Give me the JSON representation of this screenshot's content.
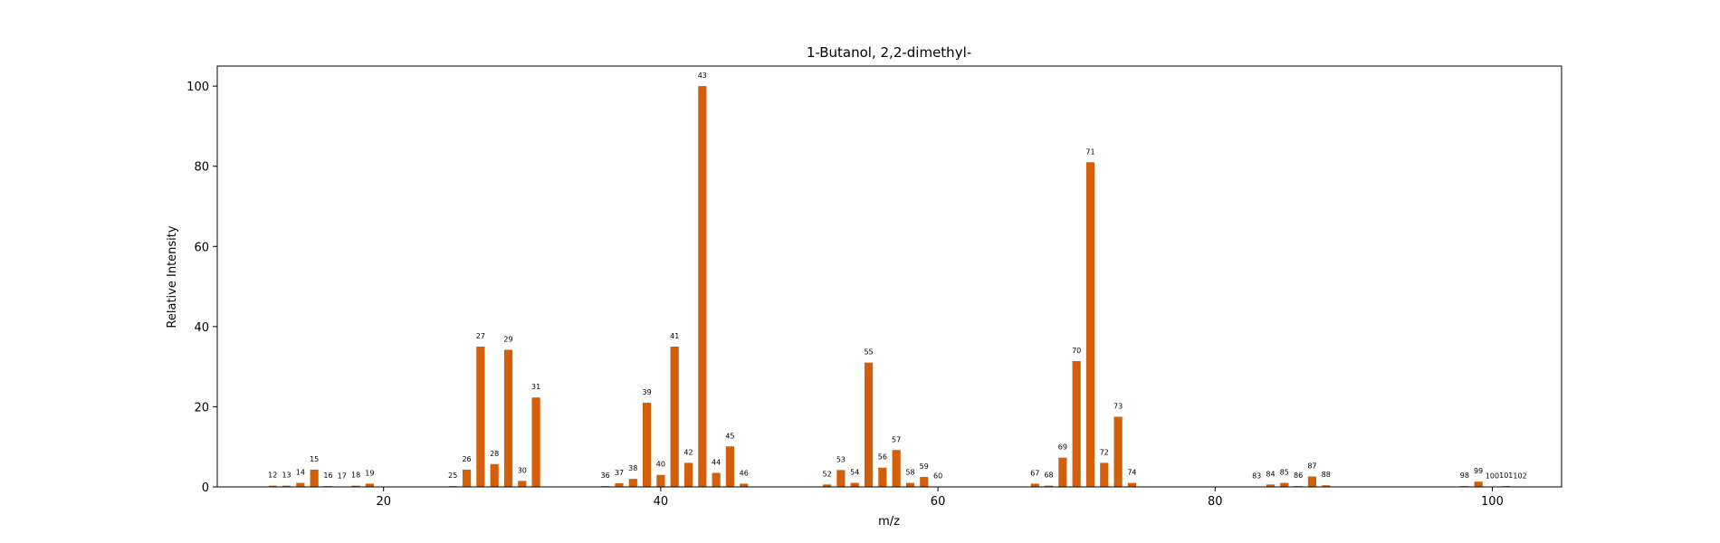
{
  "chart_data": {
    "type": "bar",
    "title": "1-Butanol, 2,2-dimethyl-",
    "xlabel": "m/z",
    "ylabel": "Relative Intensity",
    "xlim": [
      8,
      105
    ],
    "ylim": [
      0,
      105
    ],
    "xticks": [
      20,
      40,
      60,
      80,
      100
    ],
    "yticks": [
      0,
      20,
      40,
      60,
      80,
      100
    ],
    "grid": false,
    "bar_color": "#d35f0a",
    "x": [
      12,
      13,
      14,
      15,
      16,
      17,
      18,
      19,
      25,
      26,
      27,
      28,
      29,
      30,
      31,
      36,
      37,
      38,
      39,
      40,
      41,
      42,
      43,
      44,
      45,
      46,
      52,
      53,
      54,
      55,
      56,
      57,
      58,
      59,
      60,
      67,
      68,
      69,
      70,
      71,
      72,
      73,
      74,
      83,
      84,
      85,
      86,
      87,
      88,
      98,
      99,
      100,
      101,
      102
    ],
    "values": [
      0.3,
      0.3,
      1.0,
      4.3,
      0.2,
      0.1,
      0.3,
      0.8,
      0.2,
      4.3,
      35.0,
      5.7,
      34.2,
      1.5,
      22.3,
      0.2,
      0.9,
      2.0,
      21.0,
      3.0,
      35.0,
      6.0,
      100,
      3.5,
      10.1,
      0.8,
      0.6,
      4.2,
      1.0,
      31.0,
      4.8,
      9.2,
      1.0,
      2.5,
      0.1,
      0.8,
      0.3,
      7.3,
      31.4,
      81.0,
      6.0,
      17.5,
      1.0,
      0.1,
      0.6,
      1.0,
      0.2,
      2.6,
      0.4,
      0.2,
      1.3,
      0.1,
      0.2,
      0.1
    ]
  }
}
